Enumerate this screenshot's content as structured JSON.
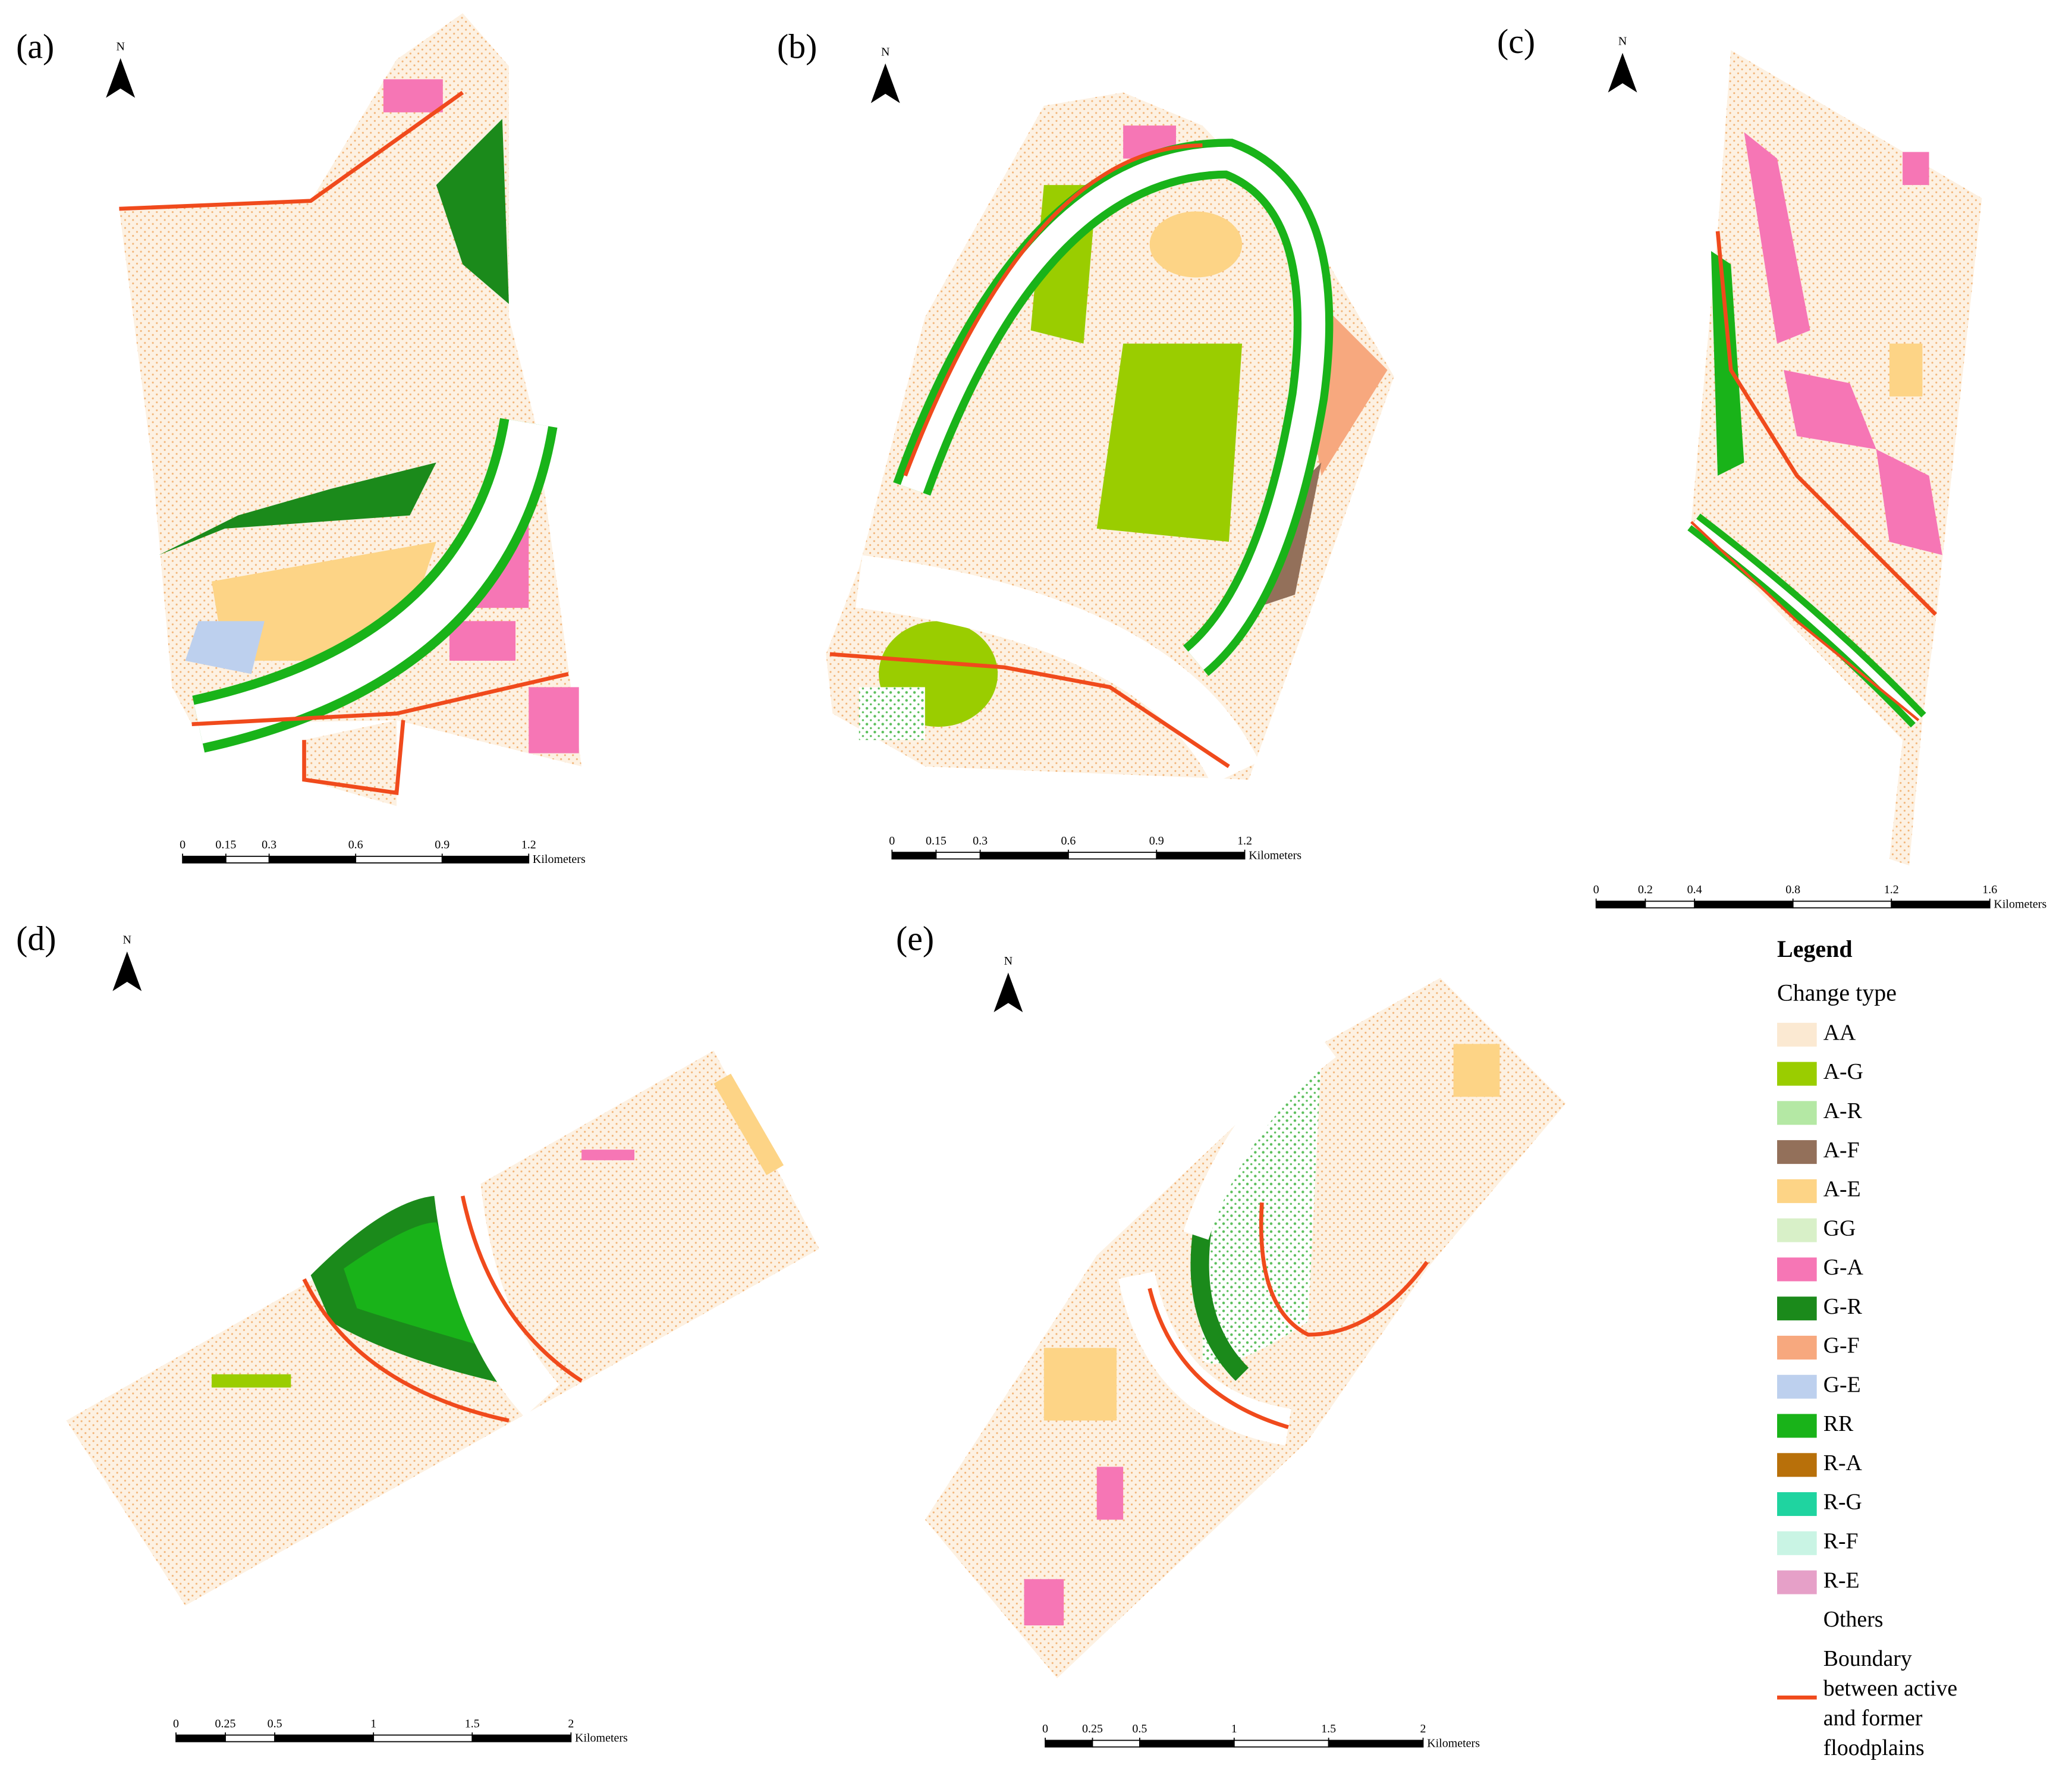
{
  "panels": [
    {
      "label": "(a)",
      "north": "N",
      "scale": {
        "ticks": [
          0,
          0.15,
          0.3,
          0.6,
          0.9,
          1.2
        ],
        "unit": "Kilometers"
      }
    },
    {
      "label": "(b)",
      "north": "N",
      "scale": {
        "ticks": [
          0,
          0.15,
          0.3,
          0.6,
          0.9,
          1.2
        ],
        "unit": "Kilometers"
      }
    },
    {
      "label": "(c)",
      "north": "N",
      "scale": {
        "ticks": [
          0,
          0.2,
          0.4,
          0.8,
          1.2,
          1.6
        ],
        "unit": "Kilometers"
      }
    },
    {
      "label": "(d)",
      "north": "N",
      "scale": {
        "ticks": [
          0,
          0.25,
          0.5,
          1,
          1.5,
          2
        ],
        "unit": "Kilometers"
      }
    },
    {
      "label": "(e)",
      "north": "N",
      "scale": {
        "ticks": [
          0,
          0.25,
          0.5,
          1,
          1.5,
          2
        ],
        "unit": "Kilometers"
      }
    }
  ],
  "legend": {
    "title": "Legend",
    "subtitle": "Change type",
    "items": [
      {
        "label": "AA",
        "color": "#fbe9d2"
      },
      {
        "label": "A-G",
        "color": "#9acd00"
      },
      {
        "label": "A-R",
        "color": "#b4e8a4"
      },
      {
        "label": "A-F",
        "color": "#93705a"
      },
      {
        "label": "A-E",
        "color": "#fdd486"
      },
      {
        "label": "GG",
        "color": "#d8f0c8"
      },
      {
        "label": "G-A",
        "color": "#f676b5"
      },
      {
        "label": "G-R",
        "color": "#1b8a1b"
      },
      {
        "label": "G-F",
        "color": "#f7a87e"
      },
      {
        "label": "G-E",
        "color": "#bdd0ee"
      },
      {
        "label": "RR",
        "color": "#19b319"
      },
      {
        "label": "R-A",
        "color": "#b8700a"
      },
      {
        "label": "R-G",
        "color": "#1fd4a0"
      },
      {
        "label": "R-F",
        "color": "#c9f4e4"
      },
      {
        "label": "R-E",
        "color": "#e6a0c8"
      },
      {
        "label": "Others",
        "color": "#ffffff"
      }
    ],
    "boundary": [
      "Boundary",
      "between active",
      "and former",
      "floodplains"
    ]
  }
}
